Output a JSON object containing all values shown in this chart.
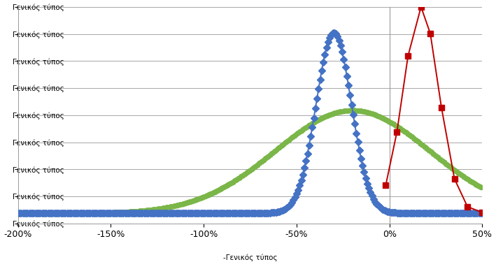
{
  "xlim": [
    -2.0,
    0.5
  ],
  "ylim": [
    -0.004,
    0.08
  ],
  "xticks": [
    -2.0,
    -1.5,
    -1.0,
    -0.5,
    0.0,
    0.5
  ],
  "xtick_labels": [
    "-200%",
    "-150%",
    "-100%",
    "-50%",
    "0%",
    "50%"
  ],
  "ytick_label": "Γενικός τύπος",
  "neg_ytick_label": "-Γενικός τύπος",
  "num_yticks": 9,
  "blue_color": "#4472C4",
  "green_color": "#7AB648",
  "red_color": "#C00000",
  "blue_mu": -0.3,
  "blue_sigma": 0.095,
  "blue_peak": 0.07,
  "green_mu": -0.2,
  "green_sigma": 0.42,
  "green_peak": 0.04,
  "red_mu": 0.17,
  "red_sigma": 0.095,
  "red_peak": 0.08,
  "grid_color": "#999999",
  "background_color": "#FFFFFF",
  "blue_marker_every": 10,
  "green_marker_every": 4,
  "red_x_points": [
    -0.02,
    0.04,
    0.1,
    0.17,
    0.22,
    0.28,
    0.35,
    0.42,
    0.5
  ],
  "linewidth": 1.4,
  "markersize_blue": 5,
  "markersize_green": 5,
  "markersize_red": 6
}
